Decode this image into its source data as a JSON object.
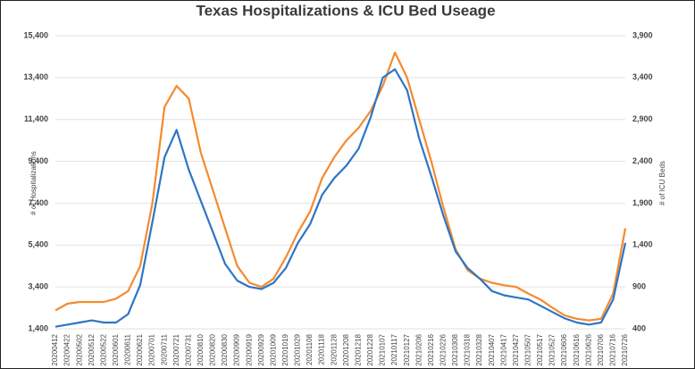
{
  "chart_data": {
    "type": "line",
    "title": "Texas Hospitalizations & ICU Bed Useage",
    "ylabel": "# of Hospitalizations",
    "y2label": "# of ICU Beds",
    "categories": [
      "20200412",
      "20200422",
      "20200502",
      "20200512",
      "20200522",
      "20200601",
      "20200611",
      "20200621",
      "20200701",
      "20200711",
      "20200721",
      "20200731",
      "20200810",
      "20200820",
      "20200830",
      "20200909",
      "20200919",
      "20200929",
      "20201009",
      "20201019",
      "20201029",
      "20201108",
      "20201118",
      "20201128",
      "20201208",
      "20201218",
      "20201228",
      "20210107",
      "20210117",
      "20210127",
      "20210206",
      "20210216",
      "20210226",
      "20210308",
      "20210318",
      "20210328",
      "20210407",
      "20210417",
      "20210427",
      "20210507",
      "20210517",
      "20210527",
      "20210606",
      "20210616",
      "20210626",
      "20210706",
      "20210716",
      "20210726"
    ],
    "series": [
      {
        "name": "Hospitalizations",
        "color": "#2e75c6",
        "axis": "y",
        "values": [
          1500,
          1600,
          1700,
          1800,
          1700,
          1700,
          2100,
          3500,
          6500,
          9600,
          10900,
          9000,
          7500,
          6000,
          4500,
          3700,
          3400,
          3300,
          3600,
          4300,
          5500,
          6400,
          7800,
          8600,
          9200,
          10000,
          11500,
          13400,
          13800,
          12800,
          10500,
          8700,
          6800,
          5100,
          4300,
          3800,
          3200,
          3000,
          2900,
          2800,
          2500,
          2200,
          1900,
          1700,
          1600,
          1700,
          2800,
          5500
        ]
      },
      {
        "name": "ICU Beds",
        "color": "#f58a2e",
        "axis": "y2",
        "values": [
          620,
          700,
          720,
          720,
          720,
          760,
          850,
          1150,
          1900,
          3050,
          3300,
          3150,
          2500,
          2050,
          1600,
          1150,
          950,
          900,
          1000,
          1250,
          1550,
          1800,
          2200,
          2450,
          2650,
          2800,
          3000,
          3300,
          3700,
          3400,
          2900,
          2400,
          1850,
          1350,
          1100,
          1000,
          950,
          920,
          900,
          820,
          750,
          650,
          560,
          520,
          500,
          520,
          820,
          1600
        ]
      }
    ],
    "ylim": [
      1400,
      15400
    ],
    "yticks": [
      {
        "value": 1400,
        "label": "1,400"
      },
      {
        "value": 3400,
        "label": "3,400"
      },
      {
        "value": 5400,
        "label": "5,400"
      },
      {
        "value": 7400,
        "label": "7,400"
      },
      {
        "value": 9400,
        "label": "9,400"
      },
      {
        "value": 11400,
        "label": "11,400"
      },
      {
        "value": 13400,
        "label": "13,400"
      },
      {
        "value": 15400,
        "label": "15,400"
      }
    ],
    "y2lim": [
      400,
      3900
    ],
    "y2ticks": [
      400,
      900,
      {
        "value": 1400,
        "label": "1,400"
      },
      {
        "value": 1900,
        "label": "1,900"
      },
      {
        "value": 2400,
        "label": "2,400"
      },
      {
        "value": 2900,
        "label": "2,900"
      },
      {
        "value": 3400,
        "label": "3,400"
      },
      {
        "value": 3900,
        "label": "3,900"
      }
    ],
    "grid": true
  }
}
